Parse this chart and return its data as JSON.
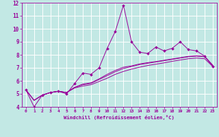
{
  "xlabel": "Windchill (Refroidissement éolien,°C)",
  "xlim": [
    -0.5,
    23.5
  ],
  "ylim": [
    4,
    12
  ],
  "xticks": [
    0,
    1,
    2,
    3,
    4,
    5,
    6,
    7,
    8,
    9,
    10,
    11,
    12,
    13,
    14,
    15,
    16,
    17,
    18,
    19,
    20,
    21,
    22,
    23
  ],
  "yticks": [
    4,
    5,
    6,
    7,
    8,
    9,
    10,
    11,
    12
  ],
  "background_color": "#c2e8e4",
  "grid_color": "#ffffff",
  "line_color": "#990099",
  "x": [
    0,
    1,
    2,
    3,
    4,
    5,
    6,
    7,
    8,
    9,
    10,
    11,
    12,
    13,
    14,
    15,
    16,
    17,
    18,
    19,
    20,
    21,
    22,
    23
  ],
  "y_jagged": [
    5.3,
    4.0,
    4.9,
    5.1,
    5.2,
    5.0,
    5.8,
    6.6,
    6.5,
    7.0,
    8.5,
    9.8,
    11.8,
    9.0,
    8.2,
    8.1,
    8.6,
    8.3,
    8.5,
    9.0,
    8.4,
    8.3,
    7.9,
    7.1
  ],
  "y_smooth1": [
    5.3,
    4.5,
    4.9,
    5.1,
    5.2,
    5.1,
    5.5,
    5.7,
    5.8,
    6.1,
    6.4,
    6.7,
    6.95,
    7.1,
    7.25,
    7.35,
    7.45,
    7.55,
    7.65,
    7.75,
    7.85,
    7.9,
    7.85,
    7.2
  ],
  "y_smooth2": [
    5.3,
    4.5,
    4.9,
    5.1,
    5.2,
    5.1,
    5.5,
    5.75,
    5.85,
    6.15,
    6.5,
    6.8,
    7.05,
    7.15,
    7.3,
    7.4,
    7.48,
    7.58,
    7.68,
    7.78,
    7.88,
    7.92,
    7.88,
    7.2
  ],
  "y_smooth3": [
    5.3,
    4.5,
    4.9,
    5.1,
    5.2,
    5.1,
    5.45,
    5.6,
    5.7,
    5.95,
    6.2,
    6.5,
    6.72,
    6.9,
    7.05,
    7.18,
    7.28,
    7.38,
    7.5,
    7.6,
    7.7,
    7.75,
    7.7,
    7.1
  ]
}
